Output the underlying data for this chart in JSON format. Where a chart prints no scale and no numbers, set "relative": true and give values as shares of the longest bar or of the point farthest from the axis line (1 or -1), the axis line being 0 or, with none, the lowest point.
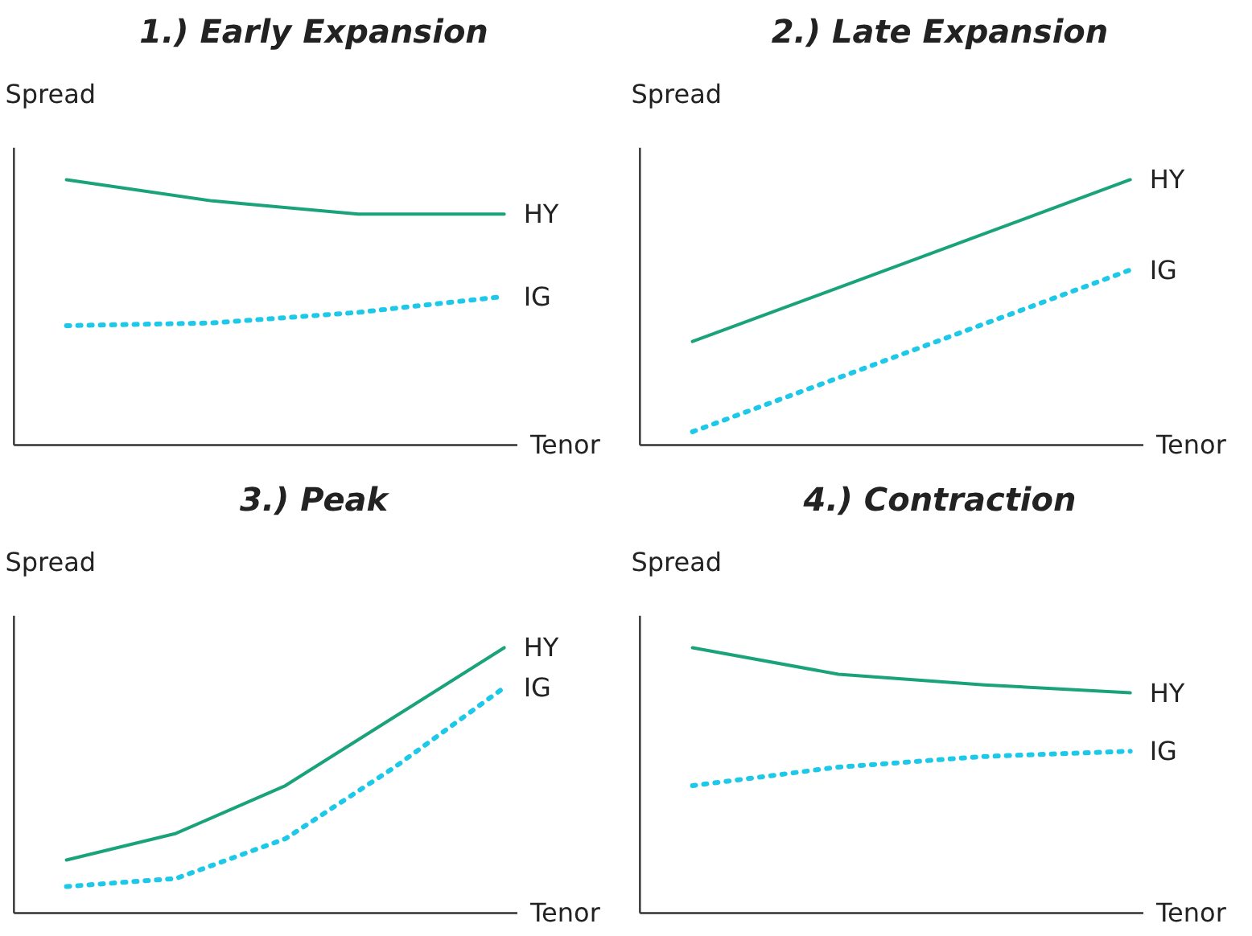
{
  "chart_data": [
    {
      "type": "line",
      "title": "1.) Early Expansion",
      "ylabel": "Spread",
      "xlabel": "Tenor",
      "relative": true,
      "legend": false,
      "categories": [
        null,
        null,
        null,
        null
      ],
      "series": [
        {
          "name": "HY",
          "color": "#1aa37a",
          "line_style": "solid",
          "values": [
            1,
            0.92,
            0.87,
            0.87
          ]
        },
        {
          "name": "IG",
          "color": "#1ec8e8",
          "line_style": "dotted",
          "values": [
            0.45,
            0.46,
            0.5,
            0.56
          ]
        }
      ]
    },
    {
      "type": "line",
      "title": "2.) Late Expansion",
      "ylabel": "Spread",
      "xlabel": "Tenor",
      "relative": true,
      "legend": false,
      "categories": [
        null,
        null
      ],
      "series": [
        {
          "name": "HY",
          "color": "#1aa37a",
          "line_style": "solid",
          "values": [
            0.39,
            1
          ]
        },
        {
          "name": "IG",
          "color": "#1ec8e8",
          "line_style": "dotted",
          "values": [
            0.05,
            0.66
          ]
        }
      ]
    },
    {
      "type": "line",
      "title": "3.) Peak",
      "ylabel": "Spread",
      "xlabel": "Tenor",
      "relative": true,
      "legend": false,
      "categories": [
        null,
        null,
        null,
        null,
        null
      ],
      "series": [
        {
          "name": "HY",
          "color": "#1aa37a",
          "line_style": "solid",
          "values": [
            0.2,
            0.3,
            0.48,
            0.74,
            1
          ]
        },
        {
          "name": "IG",
          "color": "#1ec8e8",
          "line_style": "dotted",
          "values": [
            0.1,
            0.13,
            0.28,
            0.55,
            0.85
          ]
        }
      ]
    },
    {
      "type": "line",
      "title": "4.) Contraction",
      "ylabel": "Spread",
      "xlabel": "Tenor",
      "relative": true,
      "legend": false,
      "categories": [
        null,
        null,
        null,
        null
      ],
      "series": [
        {
          "name": "HY",
          "color": "#1aa37a",
          "line_style": "solid",
          "values": [
            1,
            0.9,
            0.86,
            0.83
          ]
        },
        {
          "name": "IG",
          "color": "#1ec8e8",
          "line_style": "dotted",
          "values": [
            0.48,
            0.55,
            0.59,
            0.61
          ]
        }
      ]
    }
  ]
}
